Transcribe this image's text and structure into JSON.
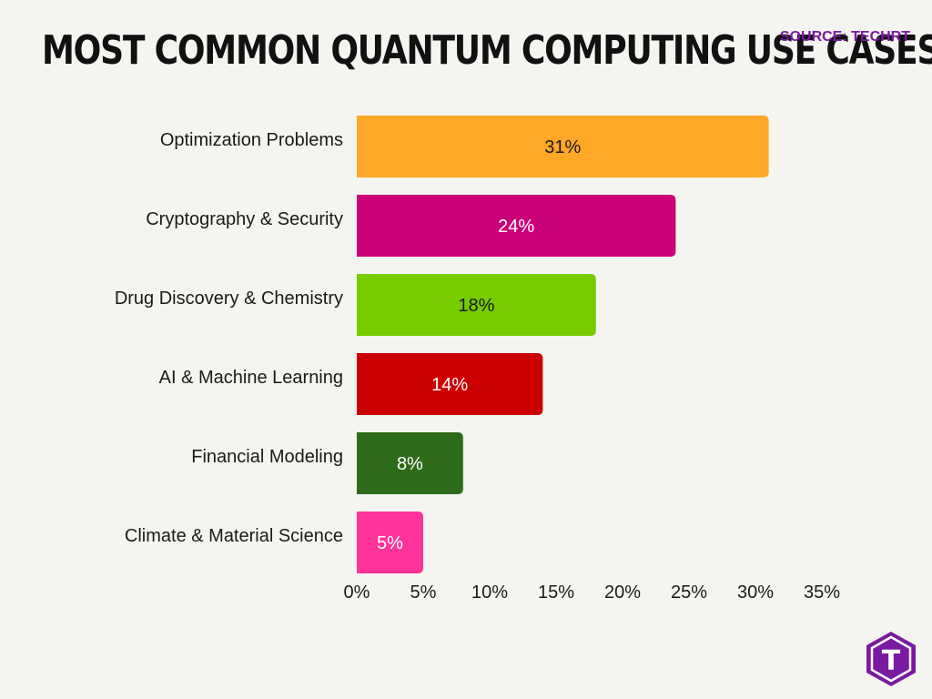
{
  "title": "MOST COMMON QUANTUM COMPUTING USE CASES",
  "source": "SOURCE: TECHRT",
  "logo_letter": "T",
  "colors": {
    "background": "#f4f4f0",
    "source_text": "#7a1aa0",
    "logo": "#7a1aa0"
  },
  "chart_data": {
    "type": "bar",
    "orientation": "horizontal",
    "categories": [
      "Optimization Problems",
      "Cryptography & Security",
      "Drug Discovery & Chemistry",
      "AI & Machine Learning",
      "Financial Modeling",
      "Climate & Material Science"
    ],
    "values": [
      31,
      24,
      18,
      14,
      8,
      5
    ],
    "value_labels": [
      "31%",
      "24%",
      "18%",
      "14%",
      "8%",
      "5%"
    ],
    "bar_colors": [
      "#ffa726",
      "#cc0077",
      "#77cc00",
      "#cc0000",
      "#2e6b1a",
      "#ff3399"
    ],
    "label_colors": [
      "#1a1a1a",
      "#ffffff",
      "#1a1a1a",
      "#ffffff",
      "#ffffff",
      "#ffffff"
    ],
    "xlim": [
      0,
      35
    ],
    "xticks": [
      "0%",
      "5%",
      "10%",
      "15%",
      "20%",
      "25%",
      "30%",
      "35%"
    ],
    "xtick_values": [
      0,
      5,
      10,
      15,
      20,
      25,
      30,
      35
    ],
    "grid": false,
    "legend": "none"
  }
}
